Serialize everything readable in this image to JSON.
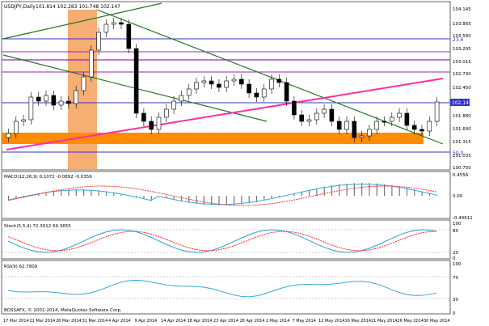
{
  "app": {
    "symbol_header": "USDJPY,Daily",
    "ohlc_text": "101.814 102.283 101.748 102.147",
    "copyright": "BOSSAFX, © 2001-2014, MetaQuotes Software Corp.",
    "current_price": "102.147"
  },
  "colors": {
    "bull": "#ffffff",
    "bear": "#000000",
    "orange_zone": "#ff8c00",
    "orange_vertical": "#f5a05a",
    "magenta_trend": "#ff2da0",
    "green_trend": "#1f7a1f",
    "purple_level": "#a020c0",
    "blue_level": "#3333cc",
    "macd_signal": "#ff3333",
    "macd_main": "#33aadd",
    "stoch_main": "#22a0d0",
    "stoch_signal": "#ff2020",
    "rsi_line": "#33aadd"
  },
  "main_panel": {
    "price_axis": [
      "104.145",
      "103.865",
      "103.580",
      "103.295",
      "103.015",
      "102.730",
      "102.450",
      "102.147",
      "101.880",
      "101.600",
      "101.315",
      "101.035",
      "100.750"
    ],
    "level_labels": [
      "23.6",
      "50.0"
    ]
  },
  "macd_panel": {
    "label": "MACD(12,26,9) 0.1072 -0.0892 -0.0356",
    "axis_top": "0.4556",
    "axis_zero": "0.00",
    "axis_bottom": "-0.44611"
  },
  "stoch_panel": {
    "label": "Stoch(5,5,4) 72.3912 69.3655",
    "axis": [
      "100",
      "80",
      "20",
      "0"
    ]
  },
  "rsi_panel": {
    "label": "RSI(9) 62.7809",
    "axis": [
      "100",
      "70",
      "30",
      "0"
    ]
  },
  "time_axis": [
    "17 Mar 2014",
    "21 Mar 2014",
    "26 Mar 2014",
    "31 Mar 2014",
    "4 Apr 2014",
    "9 Apr 2014",
    "14 Apr 2014",
    "18 Apr 2014",
    "23 Apr 2014",
    "28 Apr 2014",
    "2 May 2014",
    "7 May 2014",
    "12 May 2014",
    "16 May 2014",
    "21 May 2014",
    "26 May 2014",
    "30 May 2014"
  ]
}
